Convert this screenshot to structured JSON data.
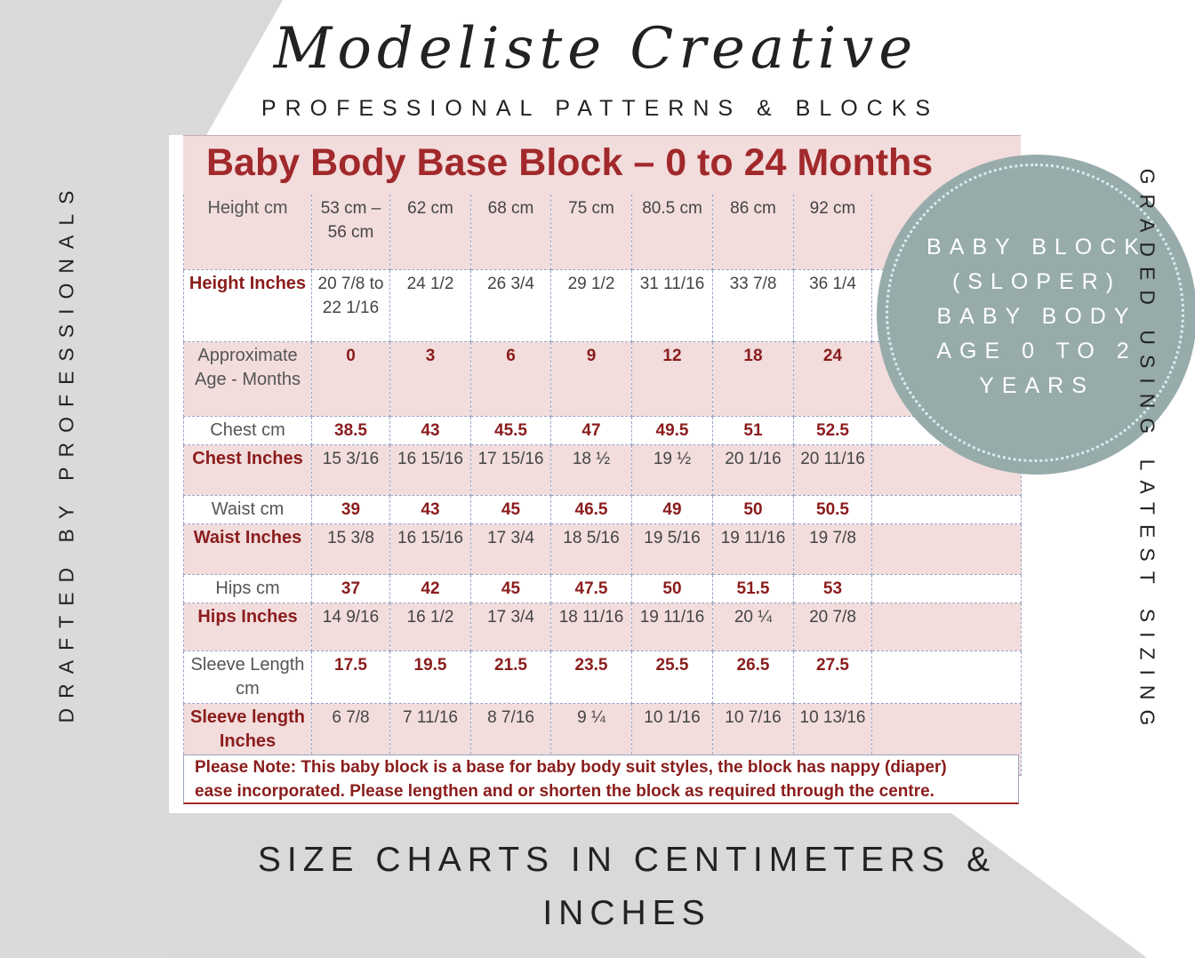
{
  "brand": {
    "name": "Modeliste Creative",
    "tagline": "PROFESSIONAL PATTERNS & BLOCKS"
  },
  "side_text": {
    "left": "DRAFTED BY PROFESSIONALS",
    "right": "GRADED USING LATEST SIZING"
  },
  "badge": {
    "lines": [
      "BABY BLOCK",
      "(SLOPER)",
      "BABY BODY",
      "AGE 0 TO 2",
      "YEARS"
    ]
  },
  "table": {
    "title": "Baby Body Base Block – 0 to 24 Months",
    "rows": [
      {
        "label": "Height cm",
        "cells": [
          "53 cm – 56 cm",
          "62 cm",
          "68 cm",
          "75 cm",
          "80.5 cm",
          "86 cm",
          "92 cm",
          ""
        ]
      },
      {
        "label": "Height Inches",
        "cells": [
          "20 7/8 to 22 1/16",
          "24 1/2",
          "26 3/4",
          "29 1/2",
          "31 11/16",
          "33 7/8",
          "36 1/4",
          ""
        ]
      },
      {
        "label": "Approximate Age - Months",
        "cells": [
          "0",
          "3",
          "6",
          "9",
          "12",
          "18",
          "24",
          ""
        ]
      },
      {
        "label": "Chest cm",
        "cells": [
          "38.5",
          "43",
          "45.5",
          "47",
          "49.5",
          "51",
          "52.5",
          ""
        ]
      },
      {
        "label": "Chest Inches",
        "cells": [
          "15 3/16",
          "16 15/16",
          "17 15/16",
          "18 ½",
          "19 ½",
          "20 1/16",
          "20 11/16",
          ""
        ]
      },
      {
        "label": "Waist cm",
        "cells": [
          "39",
          "43",
          "45",
          "46.5",
          "49",
          "50",
          "50.5",
          ""
        ]
      },
      {
        "label": "Waist Inches",
        "cells": [
          "15 3/8",
          "16 15/16",
          "17 3/4",
          "18 5/16",
          "19 5/16",
          "19 11/16",
          "19 7/8",
          ""
        ]
      },
      {
        "label": "Hips cm",
        "cells": [
          "37",
          "42",
          "45",
          "47.5",
          "50",
          "51.5",
          "53",
          ""
        ]
      },
      {
        "label": "Hips Inches",
        "cells": [
          "14 9/16",
          "16 1/2",
          "17 3/4",
          "18 11/16",
          "19 11/16",
          "20 ¼",
          "20 7/8",
          ""
        ]
      },
      {
        "label": "Sleeve Length cm",
        "cells": [
          "17.5",
          "19.5",
          "21.5",
          "23.5",
          "25.5",
          "26.5",
          "27.5",
          ""
        ]
      },
      {
        "label": "Sleeve length Inches",
        "cells": [
          "6 7/8",
          "7 11/16",
          "8 7/16",
          "9 ¼",
          "10 1/16",
          "10 7/16",
          "10 13/16",
          ""
        ]
      }
    ],
    "note_line1": "Please Note: This baby block is a base for baby body suit styles, the block has nappy (diaper)",
    "note_line2": "ease incorporated. Please lengthen and or shorten the block as required through the centre."
  },
  "footer": {
    "line1": "SIZE CHARTS IN CENTIMETERS &",
    "line2": "INCHES"
  },
  "colors": {
    "accent_red": "#a1292b",
    "row_pink": "#f2dcdc",
    "badge_teal": "#97abab",
    "background_grey": "#d9d9d9"
  }
}
